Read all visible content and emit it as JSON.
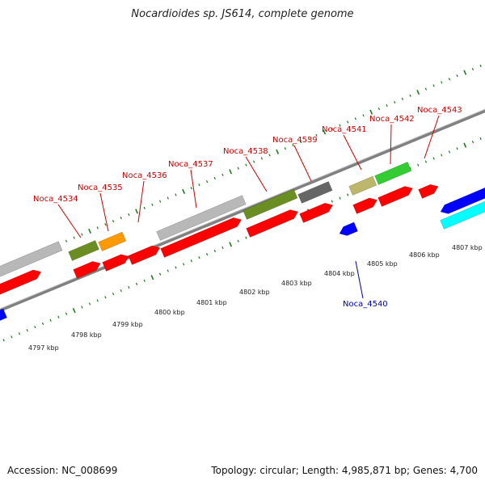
{
  "title": "Nocardioides sp. JS614, complete genome",
  "footer": {
    "accession": "Accession: NC_008699",
    "summary": "Topology: circular; Length: 4,985,871 bp; Genes: 4,700"
  },
  "colors": {
    "forward_cds": "#ff0000",
    "reverse_cds": "#0000ff",
    "backbone": "#808080",
    "ticks": "#1f7a1f",
    "label_forward": "#cc0000",
    "label_reverse": "#0000aa",
    "cog_gray": "#b8b8b8",
    "cog_olive": "#6b8e23",
    "cog_orange": "#ff9900",
    "cog_darkgray": "#666666",
    "cog_khaki": "#bdb76b",
    "cog_green": "#33cc33",
    "cog_cyan": "#00ffff"
  },
  "genes": [
    {
      "name": "Noca_4534",
      "strand": "forward"
    },
    {
      "name": "Noca_4535",
      "strand": "forward"
    },
    {
      "name": "Noca_4536",
      "strand": "forward"
    },
    {
      "name": "Noca_4537",
      "strand": "forward"
    },
    {
      "name": "Noca_4538",
      "strand": "forward"
    },
    {
      "name": "Noca_4539",
      "strand": "forward"
    },
    {
      "name": "Noca_4541",
      "strand": "forward"
    },
    {
      "name": "Noca_4542",
      "strand": "forward"
    },
    {
      "name": "Noca_4543",
      "strand": "forward"
    },
    {
      "name": "Noca_4540",
      "strand": "reverse"
    }
  ],
  "kbp_ticks": [
    "4797 kbp",
    "4798 kbp",
    "4799 kbp",
    "4800 kbp",
    "4801 kbp",
    "4802 kbp",
    "4803 kbp",
    "4804 kbp",
    "4805 kbp",
    "4806 kbp",
    "4807 kbp"
  ]
}
